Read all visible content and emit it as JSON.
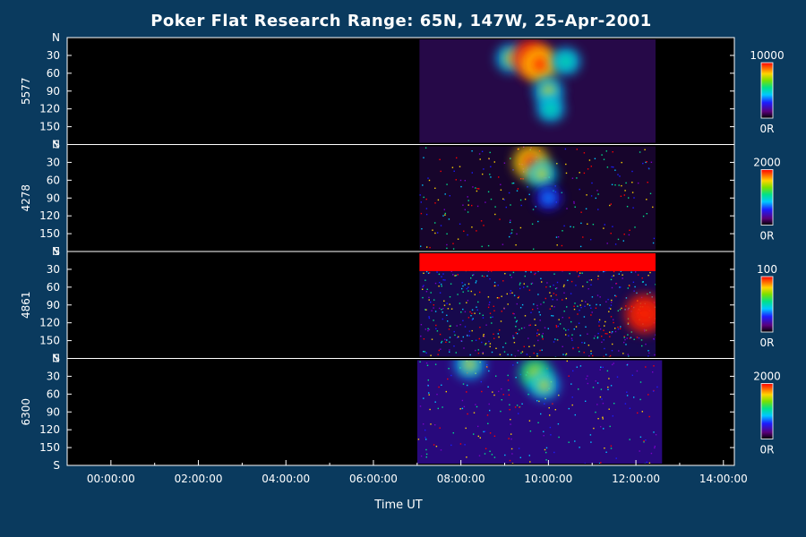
{
  "chart_data": {
    "type": "heatmap",
    "title": "Poker Flat Research Range: 65N, 147W, 25-Apr-2001",
    "xlabel": "Time UT",
    "x_ticks": [
      "00:00:00",
      "02:00:00",
      "04:00:00",
      "06:00:00",
      "08:00:00",
      "10:00:00",
      "12:00:00",
      "14:00:00"
    ],
    "x_tick_hours": [
      0,
      2,
      4,
      6,
      8,
      10,
      12,
      14
    ],
    "xlim_hours": [
      -1.0,
      14.25
    ],
    "y_ticks": [
      "N",
      "30",
      "60",
      "90",
      "120",
      "150",
      "S"
    ],
    "y_tick_values": [
      0,
      30,
      60,
      90,
      120,
      150,
      180
    ],
    "ylim": [
      0,
      180
    ],
    "grid": false,
    "colorscale": [
      "#000000",
      "#5a007a",
      "#1c1cff",
      "#00c8ff",
      "#00e08a",
      "#7ae000",
      "#ffd400",
      "#ff6a00",
      "#ff0000"
    ],
    "panels": [
      {
        "label": "5577",
        "colorbar_max": "10000",
        "colorbar_min": "0R",
        "data_start_hour": 7.05,
        "data_end_hour": 12.45,
        "features": [
          {
            "hour": 9.15,
            "angle": 35,
            "intensity": 0.55
          },
          {
            "hour": 9.6,
            "angle": 35,
            "intensity": 0.95
          },
          {
            "hour": 9.8,
            "angle": 45,
            "intensity": 0.85
          },
          {
            "hour": 10.0,
            "angle": 90,
            "intensity": 0.55
          },
          {
            "hour": 10.05,
            "angle": 120,
            "intensity": 0.45
          },
          {
            "hour": 10.4,
            "angle": 40,
            "intensity": 0.5
          }
        ]
      },
      {
        "label": "4278",
        "colorbar_max": "2000",
        "colorbar_min": "0R",
        "data_start_hour": 7.05,
        "data_end_hour": 12.45,
        "features": [
          {
            "hour": 9.6,
            "angle": 30,
            "intensity": 0.8
          },
          {
            "hour": 9.85,
            "angle": 50,
            "intensity": 0.55
          },
          {
            "hour": 10.0,
            "angle": 90,
            "intensity": 0.35
          }
        ]
      },
      {
        "label": "4861",
        "colorbar_max": "100",
        "colorbar_min": "0R",
        "data_start_hour": 7.05,
        "data_end_hour": 12.45,
        "saturated_top_to_angle": 30,
        "features": [
          {
            "hour": 12.2,
            "angle": 105,
            "intensity": 1.0
          }
        ]
      },
      {
        "label": "6300",
        "colorbar_max": "2000",
        "colorbar_min": "0R",
        "data_start_hour": 7.0,
        "data_end_hour": 12.6,
        "features": [
          {
            "hour": 9.7,
            "angle": 25,
            "intensity": 0.7
          },
          {
            "hour": 9.9,
            "angle": 45,
            "intensity": 0.55
          },
          {
            "hour": 8.2,
            "angle": 10,
            "intensity": 0.55
          }
        ]
      }
    ]
  }
}
